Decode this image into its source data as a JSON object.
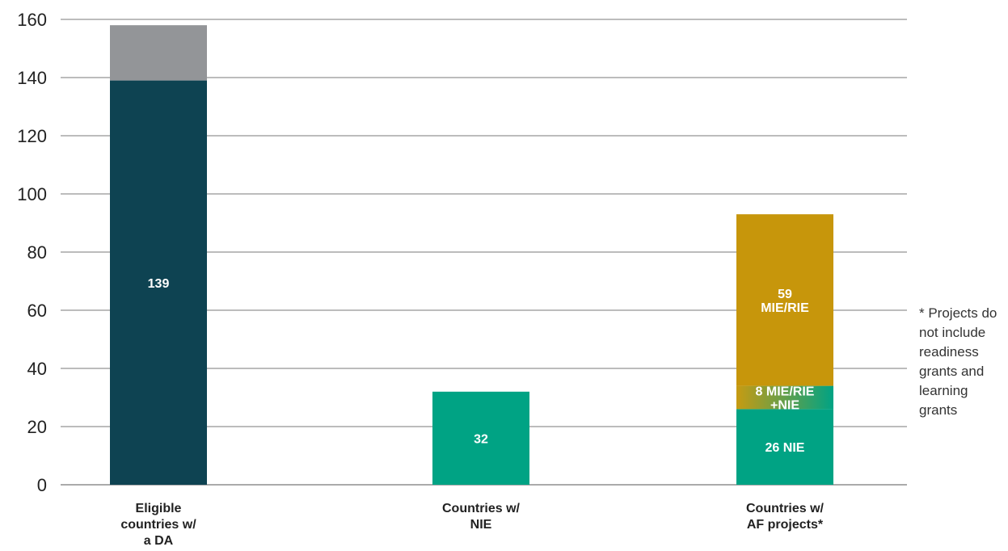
{
  "chart_data": {
    "type": "bar",
    "stacked": true,
    "ylim": [
      0,
      160
    ],
    "yticks": [
      0,
      20,
      40,
      60,
      80,
      100,
      120,
      140,
      160
    ],
    "grid": true,
    "categories": [
      [
        "Eligible",
        "countries w/",
        "a DA"
      ],
      [
        "Countries w/",
        "NIE"
      ],
      [
        "Countries w/",
        "AF projects*"
      ]
    ],
    "bars": [
      {
        "segments": [
          {
            "value": 139,
            "label": [
              "139"
            ],
            "color": "#0e4352"
          },
          {
            "value": 19,
            "label": [],
            "color": "#939598"
          }
        ]
      },
      {
        "segments": [
          {
            "value": 32,
            "label": [
              "32"
            ],
            "color": "#00a384"
          }
        ]
      },
      {
        "segments": [
          {
            "value": 26,
            "label": [
              "26 NIE"
            ],
            "color": "#00a384"
          },
          {
            "value": 8,
            "label": [
              "8 MIE/RIE",
              "+NIE"
            ],
            "color": "#6e9c52",
            "gradient": [
              "#c79b12",
              "#00a384"
            ]
          },
          {
            "value": 59,
            "label": [
              "59",
              "MIE/RIE"
            ],
            "color": "#c7960b"
          }
        ]
      }
    ],
    "footnote": [
      "* Projects do",
      "not include",
      "readiness",
      "grants and",
      "learning",
      "grants"
    ]
  }
}
